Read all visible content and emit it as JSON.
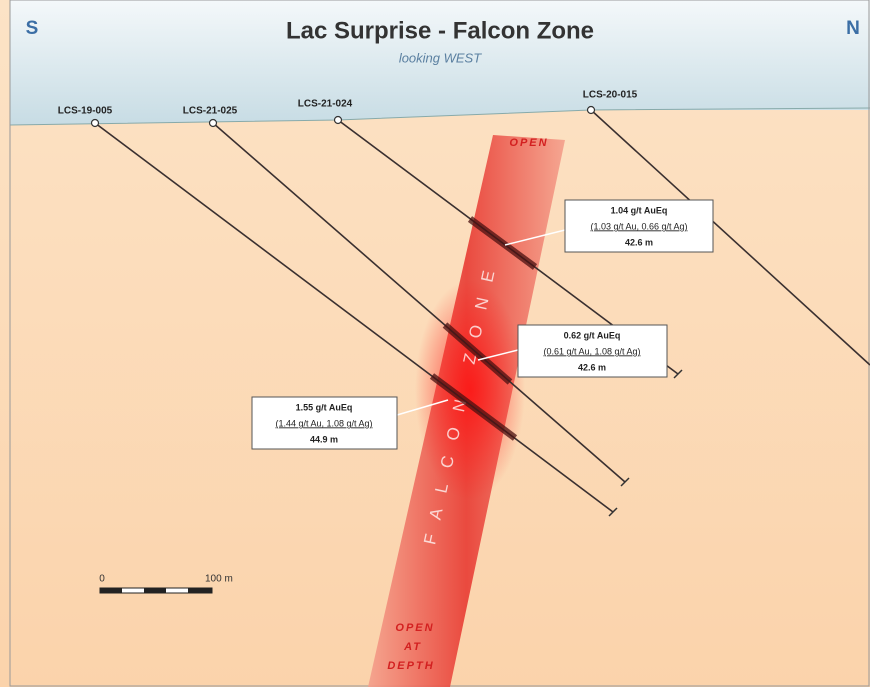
{
  "header": {
    "title": "Lac Surprise - Falcon Zone",
    "subtitle": "looking WEST",
    "left_direction": "S",
    "right_direction": "N"
  },
  "drill_holes": [
    {
      "label": "LCS-19-005"
    },
    {
      "label": "LCS-21-025"
    },
    {
      "label": "LCS-21-024"
    },
    {
      "label": "LCS-20-015"
    }
  ],
  "intercepts": [
    {
      "grade": "1.04 g/t AuEq",
      "detail": "(1.03 g/t Au, 0.66 g/t Ag)",
      "length": "42.6 m"
    },
    {
      "grade": "0.62 g/t AuEq",
      "detail": "(0.61 g/t Au, 1.08 g/t Ag)",
      "length": "42.6 m"
    },
    {
      "grade": "1.55 g/t AuEq",
      "detail": "(1.44 g/t Au, 1.08 g/t Ag)",
      "length": "44.9 m"
    }
  ],
  "zone": {
    "label": "FALCON ZONE",
    "top_note": "OPEN",
    "bottom_note": [
      "OPEN",
      "AT",
      "DEPTH"
    ]
  },
  "scale": {
    "start": "0",
    "end": "100 m"
  }
}
